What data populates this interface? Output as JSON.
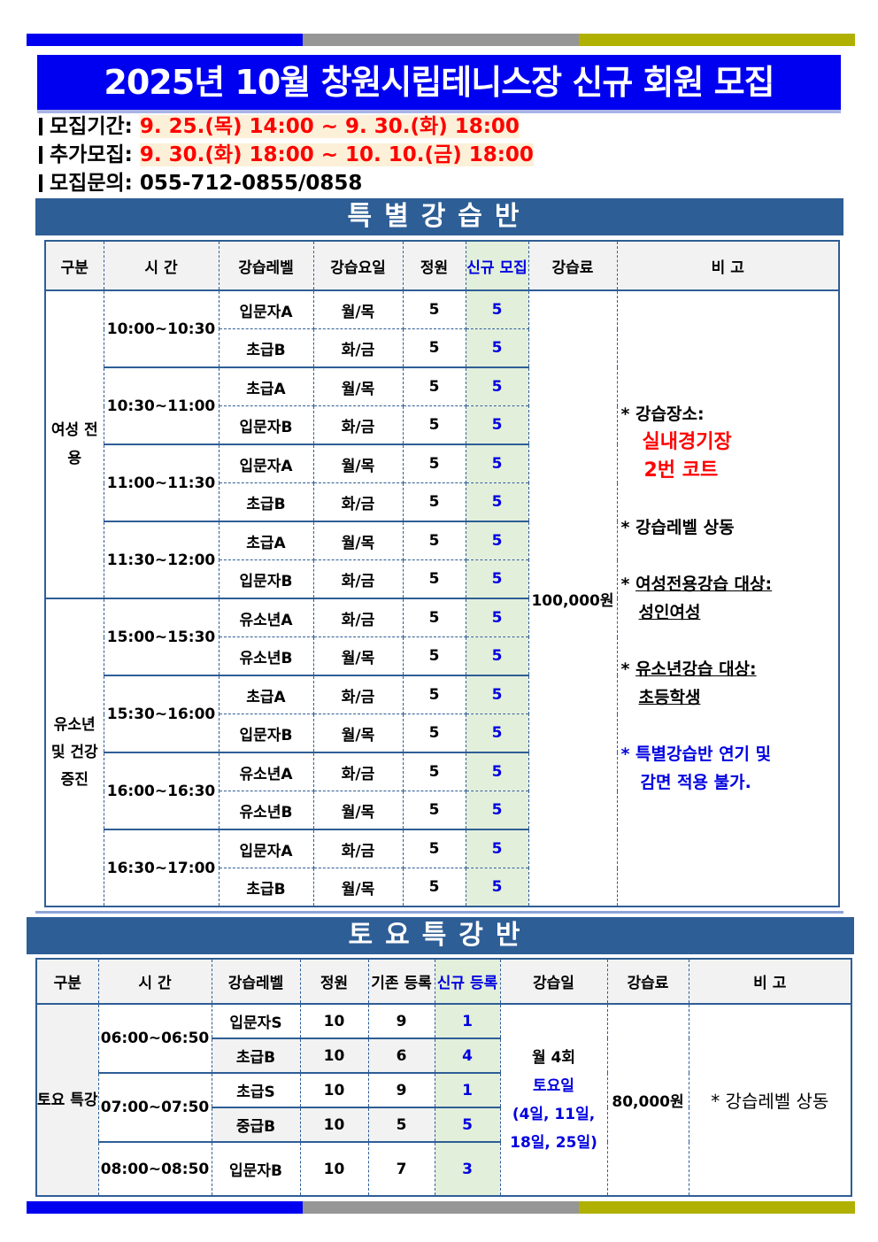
{
  "title": "2025년 10월 창원시립테니스장 신규 회원 모집",
  "info": [
    {
      "label": "모집기간:",
      "value": "9. 25.(목) 14:00 ~ 9. 30.(화) 18:00"
    },
    {
      "label": "추가모집:",
      "value": "9. 30.(화) 18:00 ~ 10. 10.(금) 18:00"
    },
    {
      "label": "모집문의:",
      "value": "055-712-0855/0858"
    }
  ],
  "colors": {
    "title_bg": "#0000f0",
    "section_bg": "#2e5e96",
    "accent_red": "#ff0000",
    "accent_blue": "#0000e0",
    "new_col_bg": "#e2efda"
  },
  "special": {
    "heading": "특별강습반",
    "headers": [
      "구분",
      "시 간",
      "강습레벨",
      "강습요일",
      "정원",
      "신규 모집",
      "강습료",
      "비 고"
    ],
    "groups": [
      {
        "name": "여성 전용"
      },
      {
        "name": "유소년 및 건강 증진"
      }
    ],
    "fee": "100,000원",
    "slots": [
      {
        "time": "10:00~10:30",
        "rows": [
          [
            "입문자A",
            "월/목",
            "5",
            "5"
          ],
          [
            "초급B",
            "화/금",
            "5",
            "5"
          ]
        ]
      },
      {
        "time": "10:30~11:00",
        "rows": [
          [
            "초급A",
            "월/목",
            "5",
            "5"
          ],
          [
            "입문자B",
            "화/금",
            "5",
            "5"
          ]
        ]
      },
      {
        "time": "11:00~11:30",
        "rows": [
          [
            "입문자A",
            "월/목",
            "5",
            "5"
          ],
          [
            "초급B",
            "화/금",
            "5",
            "5"
          ]
        ]
      },
      {
        "time": "11:30~12:00",
        "rows": [
          [
            "초급A",
            "월/목",
            "5",
            "5"
          ],
          [
            "입문자B",
            "화/금",
            "5",
            "5"
          ]
        ]
      },
      {
        "time": "15:00~15:30",
        "rows": [
          [
            "유소년A",
            "화/금",
            "5",
            "5"
          ],
          [
            "유소년B",
            "월/목",
            "5",
            "5"
          ]
        ]
      },
      {
        "time": "15:30~16:00",
        "rows": [
          [
            "초급A",
            "화/금",
            "5",
            "5"
          ],
          [
            "입문자B",
            "월/목",
            "5",
            "5"
          ]
        ]
      },
      {
        "time": "16:00~16:30",
        "rows": [
          [
            "유소년A",
            "화/금",
            "5",
            "5"
          ],
          [
            "유소년B",
            "월/목",
            "5",
            "5"
          ]
        ]
      },
      {
        "time": "16:30~17:00",
        "rows": [
          [
            "입문자A",
            "화/금",
            "5",
            "5"
          ],
          [
            "초급B",
            "월/목",
            "5",
            "5"
          ]
        ]
      }
    ],
    "notes": {
      "place_label": "* 강습장소:",
      "place1": "실내경기장",
      "place2": "2번 코트",
      "level": "* 강습레벨 상동",
      "women_label": "여성전용강습 대상:",
      "women_value": "성인여성",
      "youth_label": "유소년강습 대상:",
      "youth_value": "초등학생",
      "warn1": "* 특별강습반 연기 및",
      "warn2": "감면 적용 불가."
    }
  },
  "saturday": {
    "heading": "토요특강반",
    "headers": [
      "구분",
      "시 간",
      "강습레벨",
      "정원",
      "기존 등록",
      "신규 등록",
      "강습일",
      "강습료",
      "비 고"
    ],
    "group": "토요 특강",
    "schedule1": "월 4회",
    "schedule2": "토요일",
    "schedule3": "(4일, 11일,",
    "schedule4": "18일, 25일)",
    "fee": "80,000원",
    "note": "* 강습레벨 상동",
    "slots": [
      {
        "time": "06:00~06:50",
        "rows": [
          [
            "입문자S",
            "10",
            "9",
            "1"
          ],
          [
            "초급B",
            "10",
            "6",
            "4"
          ]
        ]
      },
      {
        "time": "07:00~07:50",
        "rows": [
          [
            "초급S",
            "10",
            "9",
            "1"
          ],
          [
            "중급B",
            "10",
            "5",
            "5"
          ]
        ]
      },
      {
        "time": "08:00~08:50",
        "rows": [
          [
            "입문자B",
            "10",
            "7",
            "3"
          ]
        ]
      }
    ]
  }
}
